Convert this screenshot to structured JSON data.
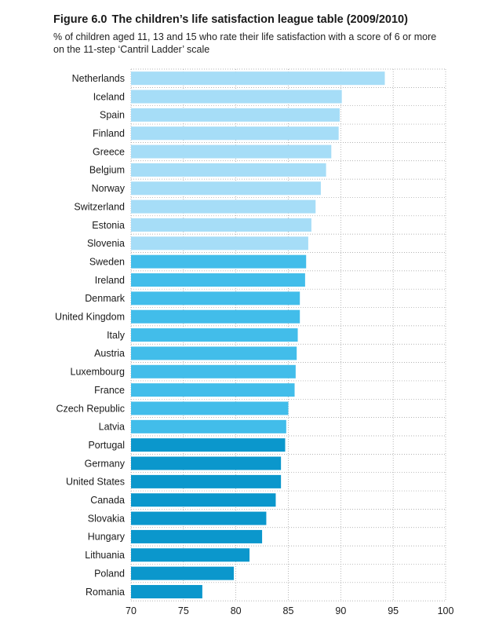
{
  "figure": {
    "number": "Figure 6.0",
    "title": "The children’s life satisfaction league table (2009/2010)",
    "subtitle": "% of children aged 11, 13 and 15 who rate their life satisfaction with a score of 6 or more on the 11-step ‘Cantril Ladder’ scale"
  },
  "colors": {
    "top_third": "#a6ddf7",
    "middle_third": "#42bdea",
    "bottom_third": "#0b97cc",
    "gridline": "#9a9a9a"
  },
  "chart_data": {
    "type": "bar",
    "orientation": "horizontal",
    "categories": [
      "Netherlands",
      "Iceland",
      "Spain",
      "Finland",
      "Greece",
      "Belgium",
      "Norway",
      "Switzerland",
      "Estonia",
      "Slovenia",
      "Sweden",
      "Ireland",
      "Denmark",
      "United Kingdom",
      "Italy",
      "Austria",
      "Luxembourg",
      "France",
      "Czech Republic",
      "Latvia",
      "Portugal",
      "Germany",
      "United States",
      "Canada",
      "Slovakia",
      "Hungary",
      "Lithuania",
      "Poland",
      "Romania"
    ],
    "values": [
      94.2,
      90.1,
      89.9,
      89.8,
      89.1,
      88.6,
      88.1,
      87.6,
      87.2,
      86.9,
      86.7,
      86.6,
      86.1,
      86.1,
      85.9,
      85.8,
      85.7,
      85.6,
      85.0,
      84.8,
      84.7,
      84.3,
      84.3,
      83.8,
      82.9,
      82.5,
      81.3,
      79.8,
      76.8
    ],
    "color_groups": [
      "top_third",
      "top_third",
      "top_third",
      "top_third",
      "top_third",
      "top_third",
      "top_third",
      "top_third",
      "top_third",
      "top_third",
      "middle_third",
      "middle_third",
      "middle_third",
      "middle_third",
      "middle_third",
      "middle_third",
      "middle_third",
      "middle_third",
      "middle_third",
      "middle_third",
      "bottom_third",
      "bottom_third",
      "bottom_third",
      "bottom_third",
      "bottom_third",
      "bottom_third",
      "bottom_third",
      "bottom_third",
      "bottom_third"
    ],
    "xlim": [
      70,
      100
    ],
    "xticks": [
      70,
      75,
      80,
      85,
      90,
      95,
      100
    ],
    "grid": "vertical dotted"
  }
}
